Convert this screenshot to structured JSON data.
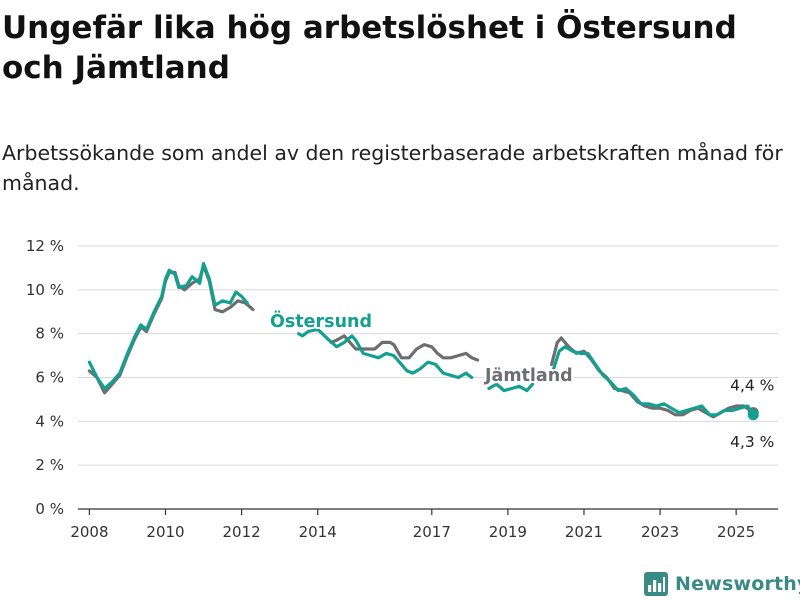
{
  "header": {
    "title": "Ungefär lika hög arbetslöshet i Östersund och Jämtland",
    "subtitle": "Arbetssökande som andel av den registerbaserade arbetskraften månad för månad."
  },
  "brand": {
    "name": "Newsworthy",
    "color": "#3a8a86"
  },
  "chart_data": {
    "type": "line",
    "ylim": [
      0,
      12
    ],
    "xlim": [
      2007.7,
      2026.1
    ],
    "y_ticks": [
      {
        "value": 0,
        "label": "0 %"
      },
      {
        "value": 2,
        "label": "2 %"
      },
      {
        "value": 4,
        "label": "4 %"
      },
      {
        "value": 6,
        "label": "6 %"
      },
      {
        "value": 8,
        "label": "8 %"
      },
      {
        "value": 10,
        "label": "10 %"
      },
      {
        "value": 12,
        "label": "12 %"
      }
    ],
    "x_ticks": [
      {
        "value": 2008,
        "label": "2008"
      },
      {
        "value": 2010,
        "label": "2010"
      },
      {
        "value": 2012,
        "label": "2012"
      },
      {
        "value": 2014,
        "label": "2014"
      },
      {
        "value": 2017,
        "label": "2017"
      },
      {
        "value": 2019,
        "label": "2019"
      },
      {
        "value": 2021,
        "label": "2021"
      },
      {
        "value": 2023,
        "label": "2023"
      },
      {
        "value": 2025,
        "label": "2025"
      }
    ],
    "grid": true,
    "legend": "direct labels on lines",
    "series": [
      {
        "name": "Jämtland",
        "color": "#6d6e70",
        "end_label": "4,4 %",
        "points": [
          [
            2008.0,
            6.3
          ],
          [
            2008.2,
            6.0
          ],
          [
            2008.4,
            5.3
          ],
          [
            2008.6,
            5.7
          ],
          [
            2008.8,
            6.1
          ],
          [
            2009.0,
            7.0
          ],
          [
            2009.2,
            7.8
          ],
          [
            2009.35,
            8.3
          ],
          [
            2009.5,
            8.1
          ],
          [
            2009.7,
            8.9
          ],
          [
            2009.9,
            9.6
          ],
          [
            2010.0,
            10.4
          ],
          [
            2010.1,
            10.8
          ],
          [
            2010.25,
            10.8
          ],
          [
            2010.35,
            10.2
          ],
          [
            2010.5,
            10.0
          ],
          [
            2010.7,
            10.3
          ],
          [
            2010.9,
            10.5
          ],
          [
            2011.0,
            11.1
          ],
          [
            2011.15,
            10.4
          ],
          [
            2011.3,
            9.1
          ],
          [
            2011.5,
            9.0
          ],
          [
            2011.7,
            9.2
          ],
          [
            2011.9,
            9.5
          ],
          [
            2012.1,
            9.4
          ],
          [
            2012.3,
            9.1
          ],
          [
            2014.35,
            7.6
          ],
          [
            2014.5,
            7.7
          ],
          [
            2014.7,
            7.9
          ],
          [
            2014.85,
            7.6
          ],
          [
            2015.0,
            7.3
          ],
          [
            2015.3,
            7.3
          ],
          [
            2015.5,
            7.3
          ],
          [
            2015.7,
            7.6
          ],
          [
            2015.9,
            7.6
          ],
          [
            2016.0,
            7.5
          ],
          [
            2016.2,
            6.9
          ],
          [
            2016.4,
            6.9
          ],
          [
            2016.6,
            7.3
          ],
          [
            2016.8,
            7.5
          ],
          [
            2017.0,
            7.4
          ],
          [
            2017.15,
            7.1
          ],
          [
            2017.3,
            6.9
          ],
          [
            2017.5,
            6.9
          ],
          [
            2017.7,
            7.0
          ],
          [
            2017.9,
            7.1
          ],
          [
            2018.05,
            6.9
          ],
          [
            2018.2,
            6.8
          ],
          [
            2020.15,
            6.6
          ],
          [
            2020.3,
            7.6
          ],
          [
            2020.4,
            7.8
          ],
          [
            2020.6,
            7.4
          ],
          [
            2020.8,
            7.1
          ],
          [
            2021.0,
            7.2
          ],
          [
            2021.2,
            6.8
          ],
          [
            2021.4,
            6.3
          ],
          [
            2021.6,
            6.0
          ],
          [
            2021.8,
            5.5
          ],
          [
            2022.0,
            5.4
          ],
          [
            2022.2,
            5.3
          ],
          [
            2022.4,
            4.9
          ],
          [
            2022.6,
            4.7
          ],
          [
            2022.8,
            4.6
          ],
          [
            2023.0,
            4.6
          ],
          [
            2023.2,
            4.5
          ],
          [
            2023.4,
            4.3
          ],
          [
            2023.6,
            4.3
          ],
          [
            2023.8,
            4.5
          ],
          [
            2024.0,
            4.6
          ],
          [
            2024.2,
            4.4
          ],
          [
            2024.4,
            4.2
          ],
          [
            2024.6,
            4.4
          ],
          [
            2024.8,
            4.6
          ],
          [
            2025.0,
            4.7
          ],
          [
            2025.2,
            4.7
          ],
          [
            2025.45,
            4.4
          ]
        ]
      },
      {
        "name": "Östersund",
        "color": "#14a090",
        "end_label": "4,3 %",
        "points": [
          [
            2008.0,
            6.7
          ],
          [
            2008.2,
            6.0
          ],
          [
            2008.4,
            5.5
          ],
          [
            2008.6,
            5.8
          ],
          [
            2008.8,
            6.2
          ],
          [
            2009.0,
            7.1
          ],
          [
            2009.2,
            7.9
          ],
          [
            2009.35,
            8.4
          ],
          [
            2009.5,
            8.2
          ],
          [
            2009.7,
            9.0
          ],
          [
            2009.9,
            9.7
          ],
          [
            2010.0,
            10.5
          ],
          [
            2010.1,
            10.9
          ],
          [
            2010.25,
            10.7
          ],
          [
            2010.35,
            10.1
          ],
          [
            2010.55,
            10.2
          ],
          [
            2010.7,
            10.6
          ],
          [
            2010.9,
            10.3
          ],
          [
            2011.0,
            11.2
          ],
          [
            2011.15,
            10.5
          ],
          [
            2011.3,
            9.3
          ],
          [
            2011.5,
            9.5
          ],
          [
            2011.7,
            9.4
          ],
          [
            2011.85,
            9.9
          ],
          [
            2012.0,
            9.7
          ],
          [
            2012.15,
            9.4
          ],
          [
            2013.5,
            8.0
          ],
          [
            2013.6,
            7.9
          ],
          [
            2013.75,
            8.1
          ],
          [
            2014.0,
            8.2
          ],
          [
            2014.3,
            7.7
          ],
          [
            2014.5,
            7.4
          ],
          [
            2014.7,
            7.6
          ],
          [
            2014.9,
            7.9
          ],
          [
            2015.0,
            7.7
          ],
          [
            2015.2,
            7.1
          ],
          [
            2015.4,
            7.0
          ],
          [
            2015.6,
            6.9
          ],
          [
            2015.8,
            7.1
          ],
          [
            2016.0,
            7.0
          ],
          [
            2016.15,
            6.7
          ],
          [
            2016.35,
            6.3
          ],
          [
            2016.5,
            6.2
          ],
          [
            2016.7,
            6.4
          ],
          [
            2016.9,
            6.7
          ],
          [
            2017.1,
            6.6
          ],
          [
            2017.3,
            6.2
          ],
          [
            2017.5,
            6.1
          ],
          [
            2017.7,
            6.0
          ],
          [
            2017.9,
            6.2
          ],
          [
            2018.05,
            6.0
          ],
          [
            2018.5,
            5.5
          ],
          [
            2018.7,
            5.7
          ],
          [
            2018.9,
            5.4
          ],
          [
            2019.1,
            5.5
          ],
          [
            2019.3,
            5.6
          ],
          [
            2019.5,
            5.4
          ],
          [
            2019.65,
            5.7
          ],
          [
            2020.15,
            6.1
          ],
          [
            2020.35,
            7.2
          ],
          [
            2020.5,
            7.4
          ],
          [
            2020.7,
            7.2
          ],
          [
            2020.9,
            7.1
          ],
          [
            2021.1,
            7.1
          ],
          [
            2021.3,
            6.6
          ],
          [
            2021.5,
            6.1
          ],
          [
            2021.7,
            5.8
          ],
          [
            2021.9,
            5.4
          ],
          [
            2022.1,
            5.5
          ],
          [
            2022.3,
            5.2
          ],
          [
            2022.5,
            4.8
          ],
          [
            2022.7,
            4.8
          ],
          [
            2022.9,
            4.7
          ],
          [
            2023.1,
            4.8
          ],
          [
            2023.3,
            4.6
          ],
          [
            2023.5,
            4.4
          ],
          [
            2023.7,
            4.5
          ],
          [
            2023.9,
            4.6
          ],
          [
            2024.1,
            4.7
          ],
          [
            2024.3,
            4.3
          ],
          [
            2024.5,
            4.3
          ],
          [
            2024.7,
            4.5
          ],
          [
            2024.9,
            4.5
          ],
          [
            2025.1,
            4.6
          ],
          [
            2025.3,
            4.7
          ],
          [
            2025.45,
            4.3
          ]
        ]
      }
    ]
  }
}
